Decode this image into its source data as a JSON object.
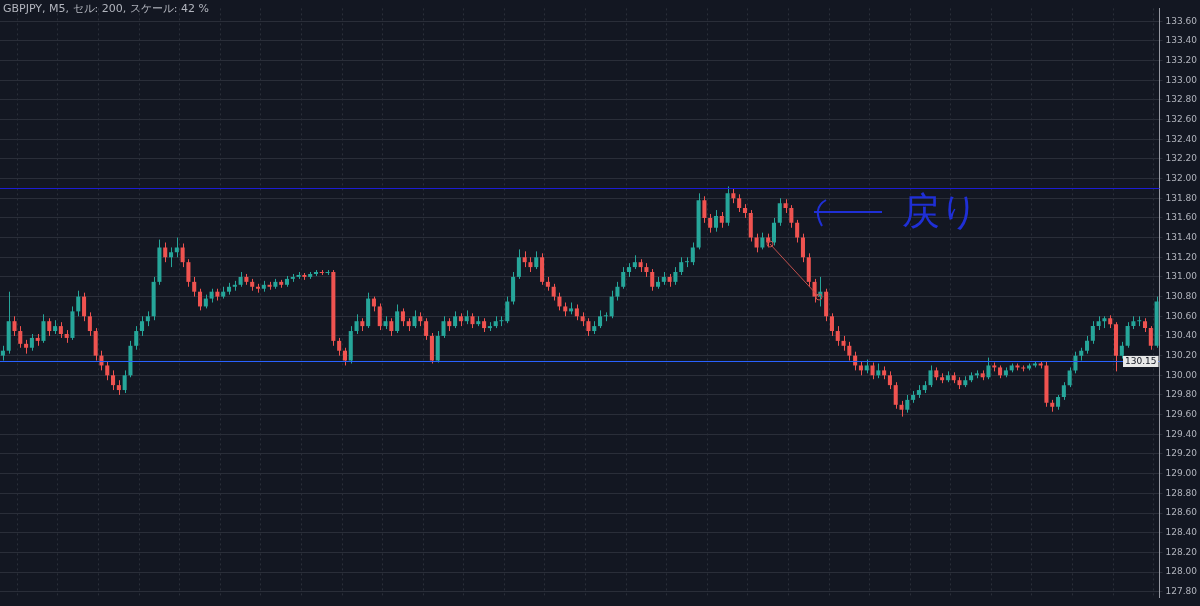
{
  "chart_data": {
    "type": "candlestick",
    "title": "GBPJPY, M5, セル: 200, スケール: 42 %",
    "annotations": [
      "戻り"
    ],
    "categories": [
      null,
      null,
      null,
      null,
      null,
      null,
      null,
      null,
      null,
      null,
      null,
      null,
      null,
      null,
      null,
      null,
      null,
      null,
      null,
      null,
      null,
      null,
      null,
      null,
      null,
      null,
      null,
      null,
      null,
      null,
      null,
      null,
      null,
      null,
      null,
      null,
      null,
      null,
      null,
      null,
      null,
      null,
      null,
      null,
      null,
      null,
      null,
      null,
      null,
      null,
      null,
      null,
      null,
      null,
      null,
      null,
      null,
      null,
      null,
      null,
      null,
      null,
      null,
      null,
      null,
      null,
      null,
      null,
      null,
      null,
      null,
      null,
      null,
      null,
      null,
      null,
      null,
      null,
      null,
      null,
      null,
      null,
      null,
      null,
      null,
      null,
      null,
      null,
      null,
      null,
      null,
      null,
      null,
      null,
      null,
      null,
      null,
      null,
      null,
      null,
      null,
      null,
      null,
      null,
      null,
      null,
      null,
      null,
      null,
      null,
      null,
      null,
      null,
      null,
      null,
      null,
      null,
      null,
      null,
      null,
      null,
      null,
      null,
      null,
      null,
      null,
      null,
      null,
      null,
      null,
      null,
      null,
      null,
      null,
      null,
      null,
      null,
      null,
      null,
      null,
      null,
      null,
      null,
      null,
      null,
      null,
      null,
      null,
      null,
      null,
      null,
      null,
      null,
      null,
      null,
      null,
      null,
      null,
      null,
      null,
      null,
      null,
      null,
      null,
      null,
      null,
      null,
      null,
      null,
      null,
      null,
      null,
      null,
      null,
      null,
      null,
      null,
      null,
      null,
      null,
      null,
      null,
      null,
      null,
      null,
      null,
      null,
      null,
      null,
      null,
      null,
      null,
      null,
      null,
      null,
      null,
      null,
      null,
      null,
      null
    ],
    "ohlc": [
      [
        130.2,
        130.3,
        130.15,
        130.25
      ],
      [
        130.25,
        130.85,
        130.22,
        130.55
      ],
      [
        130.55,
        130.6,
        130.4,
        130.45
      ],
      [
        130.45,
        130.5,
        130.28,
        130.32
      ],
      [
        130.32,
        130.36,
        130.22,
        130.28
      ],
      [
        130.28,
        130.42,
        130.25,
        130.38
      ],
      [
        130.38,
        130.42,
        130.3,
        130.35
      ],
      [
        130.35,
        130.62,
        130.33,
        130.55
      ],
      [
        130.55,
        130.58,
        130.4,
        130.45
      ],
      [
        130.45,
        130.56,
        130.42,
        130.5
      ],
      [
        130.5,
        130.54,
        130.38,
        130.42
      ],
      [
        130.42,
        130.46,
        130.33,
        130.38
      ],
      [
        130.38,
        130.7,
        130.36,
        130.65
      ],
      [
        130.65,
        130.86,
        130.6,
        130.8
      ],
      [
        130.8,
        130.84,
        130.55,
        130.6
      ],
      [
        130.6,
        130.64,
        130.4,
        130.45
      ],
      [
        130.45,
        130.48,
        130.15,
        130.2
      ],
      [
        130.2,
        130.25,
        130.05,
        130.1
      ],
      [
        130.1,
        130.14,
        129.95,
        130.0
      ],
      [
        130.0,
        130.05,
        129.85,
        129.9
      ],
      [
        129.9,
        129.95,
        129.8,
        129.85
      ],
      [
        129.85,
        130.05,
        129.82,
        130.0
      ],
      [
        130.0,
        130.35,
        129.98,
        130.3
      ],
      [
        130.3,
        130.5,
        130.26,
        130.45
      ],
      [
        130.45,
        130.6,
        130.4,
        130.55
      ],
      [
        130.55,
        130.65,
        130.5,
        130.6
      ],
      [
        130.6,
        131.0,
        130.56,
        130.95
      ],
      [
        130.95,
        131.38,
        130.92,
        131.3
      ],
      [
        131.3,
        131.35,
        131.15,
        131.2
      ],
      [
        131.2,
        131.3,
        131.1,
        131.25
      ],
      [
        131.25,
        131.4,
        131.2,
        131.3
      ],
      [
        131.3,
        131.34,
        131.1,
        131.15
      ],
      [
        131.15,
        131.18,
        130.9,
        130.95
      ],
      [
        130.95,
        131.0,
        130.8,
        130.85
      ],
      [
        130.85,
        130.88,
        130.66,
        130.7
      ],
      [
        130.7,
        130.82,
        130.68,
        130.78
      ],
      [
        130.78,
        130.88,
        130.74,
        130.85
      ],
      [
        130.85,
        130.88,
        130.76,
        130.8
      ],
      [
        130.8,
        130.9,
        130.78,
        130.85
      ],
      [
        130.85,
        130.94,
        130.82,
        130.9
      ],
      [
        130.9,
        130.96,
        130.86,
        130.92
      ],
      [
        130.92,
        131.05,
        130.9,
        131.0
      ],
      [
        131.0,
        131.03,
        130.92,
        130.95
      ],
      [
        130.95,
        130.98,
        130.86,
        130.9
      ],
      [
        130.9,
        130.93,
        130.84,
        130.88
      ],
      [
        130.88,
        130.96,
        130.85,
        130.92
      ],
      [
        130.92,
        130.95,
        130.87,
        130.9
      ],
      [
        130.9,
        130.98,
        130.88,
        130.95
      ],
      [
        130.95,
        130.97,
        130.89,
        130.92
      ],
      [
        130.92,
        131.01,
        130.9,
        130.98
      ],
      [
        130.98,
        131.03,
        130.95,
        131.0
      ],
      [
        131.0,
        131.05,
        130.98,
        131.02
      ],
      [
        131.02,
        131.04,
        130.97,
        131.0
      ],
      [
        131.0,
        131.05,
        130.98,
        131.03
      ],
      [
        131.03,
        131.07,
        131.01,
        131.05
      ],
      [
        131.05,
        131.07,
        131.02,
        131.04
      ],
      [
        131.04,
        131.07,
        131.02,
        131.05
      ],
      [
        131.05,
        131.07,
        130.3,
        130.35
      ],
      [
        130.35,
        130.38,
        130.2,
        130.25
      ],
      [
        130.25,
        130.28,
        130.1,
        130.15
      ],
      [
        130.15,
        130.5,
        130.12,
        130.45
      ],
      [
        130.45,
        130.62,
        130.42,
        130.55
      ],
      [
        130.55,
        130.58,
        130.45,
        130.5
      ],
      [
        130.5,
        130.84,
        130.48,
        130.78
      ],
      [
        130.78,
        130.8,
        130.65,
        130.7
      ],
      [
        130.7,
        130.73,
        130.46,
        130.5
      ],
      [
        130.5,
        130.6,
        130.47,
        130.55
      ],
      [
        130.55,
        130.58,
        130.4,
        130.45
      ],
      [
        130.45,
        130.72,
        130.43,
        130.65
      ],
      [
        130.65,
        130.68,
        130.5,
        130.55
      ],
      [
        130.55,
        130.58,
        130.45,
        130.5
      ],
      [
        130.5,
        130.66,
        130.48,
        130.6
      ],
      [
        130.6,
        130.64,
        130.5,
        130.55
      ],
      [
        130.55,
        130.58,
        130.36,
        130.4
      ],
      [
        130.4,
        130.43,
        130.12,
        130.15
      ],
      [
        130.15,
        130.45,
        130.13,
        130.4
      ],
      [
        130.4,
        130.6,
        130.38,
        130.55
      ],
      [
        130.55,
        130.58,
        130.45,
        130.5
      ],
      [
        130.5,
        130.65,
        130.48,
        130.6
      ],
      [
        130.6,
        130.63,
        130.5,
        130.55
      ],
      [
        130.55,
        130.66,
        130.52,
        130.6
      ],
      [
        130.6,
        130.63,
        130.48,
        130.52
      ],
      [
        130.52,
        130.6,
        130.5,
        130.55
      ],
      [
        130.55,
        130.58,
        130.44,
        130.48
      ],
      [
        130.48,
        130.54,
        130.45,
        130.5
      ],
      [
        130.5,
        130.6,
        130.48,
        130.55
      ],
      [
        130.55,
        130.6,
        130.5,
        130.55
      ],
      [
        130.55,
        130.8,
        130.53,
        130.75
      ],
      [
        130.75,
        131.05,
        130.72,
        131.0
      ],
      [
        131.0,
        131.28,
        130.98,
        131.2
      ],
      [
        131.2,
        131.26,
        131.1,
        131.15
      ],
      [
        131.15,
        131.2,
        131.05,
        131.1
      ],
      [
        131.1,
        131.26,
        131.08,
        131.2
      ],
      [
        131.2,
        131.24,
        130.92,
        130.95
      ],
      [
        130.95,
        131.0,
        130.86,
        130.9
      ],
      [
        130.9,
        130.93,
        130.76,
        130.8
      ],
      [
        130.8,
        130.84,
        130.66,
        130.7
      ],
      [
        130.7,
        130.74,
        130.6,
        130.65
      ],
      [
        130.65,
        130.74,
        130.62,
        130.68
      ],
      [
        130.68,
        130.72,
        130.56,
        130.6
      ],
      [
        130.6,
        130.64,
        130.5,
        130.55
      ],
      [
        130.55,
        130.58,
        130.4,
        130.45
      ],
      [
        130.45,
        130.55,
        130.42,
        130.5
      ],
      [
        130.5,
        130.66,
        130.48,
        130.6
      ],
      [
        130.6,
        130.64,
        130.55,
        130.6
      ],
      [
        130.6,
        130.86,
        130.58,
        130.8
      ],
      [
        130.8,
        130.95,
        130.76,
        130.9
      ],
      [
        130.9,
        131.1,
        130.88,
        131.05
      ],
      [
        131.05,
        131.14,
        131.0,
        131.1
      ],
      [
        131.1,
        131.22,
        131.08,
        131.15
      ],
      [
        131.15,
        131.18,
        131.05,
        131.1
      ],
      [
        131.1,
        131.14,
        131.0,
        131.05
      ],
      [
        131.05,
        131.08,
        130.86,
        130.9
      ],
      [
        130.9,
        131.0,
        130.88,
        130.95
      ],
      [
        130.95,
        131.05,
        130.92,
        131.0
      ],
      [
        131.0,
        131.03,
        130.9,
        130.95
      ],
      [
        130.95,
        131.1,
        130.92,
        131.05
      ],
      [
        131.05,
        131.2,
        131.02,
        131.15
      ],
      [
        131.15,
        131.2,
        131.1,
        131.15
      ],
      [
        131.15,
        131.35,
        131.12,
        131.3
      ],
      [
        131.3,
        131.85,
        131.28,
        131.78
      ],
      [
        131.78,
        131.82,
        131.55,
        131.6
      ],
      [
        131.6,
        131.64,
        131.45,
        131.5
      ],
      [
        131.5,
        131.68,
        131.46,
        131.62
      ],
      [
        131.62,
        131.66,
        131.5,
        131.55
      ],
      [
        131.55,
        131.92,
        131.52,
        131.85
      ],
      [
        131.85,
        131.9,
        131.75,
        131.8
      ],
      [
        131.8,
        131.84,
        131.66,
        131.7
      ],
      [
        131.7,
        131.74,
        131.6,
        131.65
      ],
      [
        131.65,
        131.68,
        131.36,
        131.4
      ],
      [
        131.4,
        131.44,
        131.25,
        131.3
      ],
      [
        131.3,
        131.45,
        131.28,
        131.4
      ],
      [
        131.4,
        131.44,
        131.3,
        131.35
      ],
      [
        131.35,
        131.6,
        131.32,
        131.55
      ],
      [
        131.55,
        131.8,
        131.52,
        131.75
      ],
      [
        131.75,
        131.79,
        131.65,
        131.7
      ],
      [
        131.7,
        131.73,
        131.5,
        131.55
      ],
      [
        131.55,
        131.58,
        131.35,
        131.4
      ],
      [
        131.4,
        131.44,
        131.15,
        131.2
      ],
      [
        131.2,
        131.24,
        130.9,
        130.95
      ],
      [
        130.95,
        130.98,
        130.74,
        130.8
      ],
      [
        130.8,
        131.0,
        130.7,
        130.85
      ],
      [
        130.85,
        130.88,
        130.55,
        130.6
      ],
      [
        130.6,
        130.63,
        130.4,
        130.45
      ],
      [
        130.45,
        130.5,
        130.3,
        130.35
      ],
      [
        130.35,
        130.4,
        130.25,
        130.3
      ],
      [
        130.3,
        130.34,
        130.15,
        130.2
      ],
      [
        130.2,
        130.24,
        130.05,
        130.1
      ],
      [
        130.1,
        130.14,
        130.0,
        130.05
      ],
      [
        130.05,
        130.16,
        130.02,
        130.1
      ],
      [
        130.1,
        130.13,
        129.96,
        130.0
      ],
      [
        130.0,
        130.12,
        129.97,
        130.05
      ],
      [
        130.05,
        130.09,
        129.96,
        130.0
      ],
      [
        130.0,
        130.04,
        129.86,
        129.9
      ],
      [
        129.9,
        129.93,
        129.66,
        129.7
      ],
      [
        129.7,
        129.74,
        129.58,
        129.65
      ],
      [
        129.65,
        129.8,
        129.62,
        129.75
      ],
      [
        129.75,
        129.84,
        129.72,
        129.8
      ],
      [
        129.8,
        129.9,
        129.77,
        129.85
      ],
      [
        129.85,
        129.94,
        129.82,
        129.9
      ],
      [
        129.9,
        130.1,
        129.88,
        130.05
      ],
      [
        130.05,
        130.08,
        129.95,
        129.98
      ],
      [
        129.98,
        130.02,
        129.92,
        129.95
      ],
      [
        129.95,
        130.04,
        129.93,
        130.0
      ],
      [
        130.0,
        130.03,
        129.92,
        129.95
      ],
      [
        129.95,
        129.98,
        129.86,
        129.9
      ],
      [
        129.9,
        129.99,
        129.88,
        129.95
      ],
      [
        129.95,
        130.03,
        129.93,
        130.0
      ],
      [
        130.0,
        130.05,
        129.97,
        130.02
      ],
      [
        130.02,
        130.05,
        129.95,
        129.98
      ],
      [
        129.98,
        130.18,
        129.96,
        130.1
      ],
      [
        130.1,
        130.13,
        130.04,
        130.08
      ],
      [
        130.08,
        130.1,
        129.97,
        130.0
      ],
      [
        130.0,
        130.08,
        129.98,
        130.05
      ],
      [
        130.05,
        130.12,
        130.03,
        130.1
      ],
      [
        130.1,
        130.12,
        130.05,
        130.08
      ],
      [
        130.08,
        130.1,
        130.04,
        130.07
      ],
      [
        130.07,
        130.12,
        130.05,
        130.1
      ],
      [
        130.1,
        130.14,
        130.08,
        130.12
      ],
      [
        130.12,
        130.14,
        130.07,
        130.1
      ],
      [
        130.1,
        130.14,
        129.68,
        129.72
      ],
      [
        129.72,
        129.75,
        129.63,
        129.68
      ],
      [
        129.68,
        129.8,
        129.65,
        129.78
      ],
      [
        129.78,
        129.93,
        129.75,
        129.9
      ],
      [
        129.9,
        130.08,
        129.88,
        130.05
      ],
      [
        130.05,
        130.24,
        130.02,
        130.2
      ],
      [
        130.2,
        130.28,
        130.15,
        130.25
      ],
      [
        130.25,
        130.4,
        130.22,
        130.35
      ],
      [
        130.35,
        130.55,
        130.32,
        130.5
      ],
      [
        130.5,
        130.6,
        130.46,
        130.55
      ],
      [
        130.55,
        130.6,
        130.48,
        130.58
      ],
      [
        130.58,
        130.61,
        130.48,
        130.52
      ],
      [
        130.52,
        130.54,
        130.04,
        130.2
      ],
      [
        130.2,
        130.34,
        130.17,
        130.3
      ],
      [
        130.3,
        130.54,
        130.28,
        130.5
      ],
      [
        130.5,
        130.6,
        130.47,
        130.55
      ],
      [
        130.55,
        130.6,
        130.5,
        130.55
      ],
      [
        130.55,
        130.58,
        130.44,
        130.48
      ],
      [
        130.48,
        130.5,
        130.26,
        130.3
      ],
      [
        130.3,
        130.8,
        130.28,
        130.75
      ]
    ],
    "ylim": [
      127.74,
      133.73
    ],
    "yticks": [
      {
        "value": 127.8,
        "label": "127.80"
      },
      {
        "value": 128.0,
        "label": "128.00"
      },
      {
        "value": 128.2,
        "label": "128.20"
      },
      {
        "value": 128.4,
        "label": "128.40"
      },
      {
        "value": 128.6,
        "label": "128.60"
      },
      {
        "value": 128.8,
        "label": "128.80"
      },
      {
        "value": 129.0,
        "label": "129.00"
      },
      {
        "value": 129.2,
        "label": "129.20"
      },
      {
        "value": 129.4,
        "label": "129.40"
      },
      {
        "value": 129.6,
        "label": "129.60"
      },
      {
        "value": 129.8,
        "label": "129.80"
      },
      {
        "value": 130.0,
        "label": "130.00"
      },
      {
        "value": 130.2,
        "label": "130.20"
      },
      {
        "value": 130.4,
        "label": "130.40"
      },
      {
        "value": 130.6,
        "label": "130.60"
      },
      {
        "value": 130.8,
        "label": "130.80"
      },
      {
        "value": 131.0,
        "label": "131.00"
      },
      {
        "value": 131.2,
        "label": "131.20"
      },
      {
        "value": 131.4,
        "label": "131.40"
      },
      {
        "value": 131.6,
        "label": "131.60"
      },
      {
        "value": 131.8,
        "label": "131.80"
      },
      {
        "value": 132.0,
        "label": "132.00"
      },
      {
        "value": 132.2,
        "label": "132.20"
      },
      {
        "value": 132.4,
        "label": "132.40"
      },
      {
        "value": 132.6,
        "label": "132.60"
      },
      {
        "value": 132.8,
        "label": "132.80"
      },
      {
        "value": 133.0,
        "label": "133.00"
      },
      {
        "value": 133.2,
        "label": "133.20"
      },
      {
        "value": 133.4,
        "label": "133.40"
      },
      {
        "value": 133.6,
        "label": "133.60"
      }
    ],
    "ref_lines": [
      {
        "axis": "y",
        "value": 130.15,
        "label": "130.15",
        "color": "#2962ff"
      },
      {
        "axis": "y",
        "value": 131.9,
        "color": "#1c1cd4"
      }
    ],
    "grid": true,
    "legend": false,
    "tick_labels": "y"
  }
}
